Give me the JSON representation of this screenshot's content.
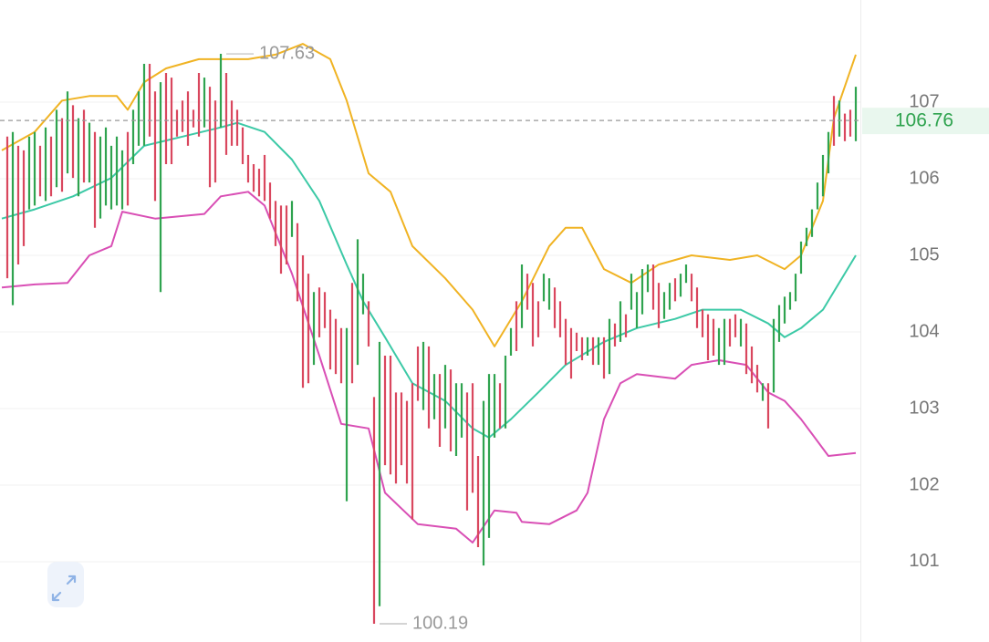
{
  "chart_data": {
    "type": "ohlc-bars",
    "ylim": [
      99.952,
      108.333
    ],
    "yticks": [
      101,
      102,
      103,
      104,
      105,
      106,
      107
    ],
    "grid": true,
    "up_color": "#2fa34f",
    "down_color": "#d9475e",
    "last_price": 106.76,
    "bars": {
      "high": [
        106.55,
        106.61,
        106.43,
        106.37,
        106.55,
        106.61,
        106.43,
        106.67,
        106.55,
        106.9,
        106.79,
        107.14,
        106.96,
        106.79,
        106.9,
        106.73,
        106.61,
        106.55,
        106.67,
        106.43,
        106.55,
        106.37,
        106.61,
        106.9,
        107.14,
        107.5,
        107.5,
        107.14,
        107.26,
        107.38,
        107.32,
        106.9,
        107.02,
        107.14,
        106.9,
        107.38,
        107.32,
        107.2,
        107.02,
        107.63,
        107.38,
        107.02,
        106.9,
        106.67,
        106.31,
        106.19,
        106.13,
        106.31,
        105.95,
        105.71,
        105.65,
        105.65,
        105.71,
        105.42,
        105.0,
        104.76,
        104.52,
        104.58,
        104.52,
        104.29,
        104.17,
        104.05,
        104.05,
        104.64,
        105.21,
        104.76,
        104.4,
        103.15,
        103.87,
        103.69,
        103.69,
        103.21,
        103.21,
        103.1,
        103.33,
        103.81,
        103.87,
        103.81,
        103.45,
        103.45,
        103.57,
        103.51,
        103.33,
        103.33,
        103.21,
        103.33,
        102.38,
        103.1,
        103.45,
        103.45,
        103.33,
        103.69,
        104.05,
        104.4,
        104.88,
        104.76,
        104.64,
        104.4,
        104.76,
        104.7,
        104.58,
        104.4,
        104.17,
        104.05,
        103.99,
        103.93,
        103.93,
        103.93,
        103.93,
        103.93,
        104.17,
        104.11,
        104.4,
        104.23,
        104.76,
        104.52,
        104.82,
        104.88,
        104.88,
        104.64,
        104.52,
        104.64,
        104.7,
        104.76,
        104.88,
        104.76,
        104.58,
        104.29,
        104.23,
        104.17,
        104.05,
        104.17,
        104.17,
        104.23,
        104.17,
        104.11,
        103.81,
        103.57,
        103.33,
        103.33,
        104.17,
        104.35,
        104.46,
        104.52,
        104.76,
        105.18,
        105.36,
        105.6,
        105.95,
        106.31,
        106.61,
        107.08,
        107.02,
        106.85,
        106.9,
        107.2
      ],
      "low": [
        104.7,
        104.35,
        104.88,
        105.12,
        105.6,
        105.65,
        105.77,
        105.71,
        105.77,
        105.89,
        105.83,
        106.07,
        106.01,
        105.77,
        105.95,
        105.95,
        105.36,
        105.48,
        105.65,
        105.6,
        105.65,
        105.6,
        105.65,
        106.19,
        106.43,
        106.43,
        106.55,
        105.71,
        104.52,
        106.19,
        106.19,
        106.55,
        106.61,
        106.43,
        106.67,
        106.55,
        106.67,
        105.89,
        105.95,
        106.67,
        106.31,
        106.43,
        106.43,
        106.19,
        105.95,
        105.83,
        105.77,
        105.71,
        105.48,
        105.12,
        104.76,
        104.88,
        105.24,
        104.4,
        103.27,
        103.33,
        103.57,
        103.93,
        104.05,
        103.51,
        103.45,
        103.33,
        101.79,
        103.33,
        103.57,
        104.23,
        103.81,
        100.19,
        100.42,
        102.26,
        102.14,
        102.02,
        102.26,
        102.02,
        101.55,
        103.1,
        102.98,
        102.74,
        102.86,
        102.5,
        102.74,
        102.44,
        102.38,
        102.62,
        101.67,
        101.9,
        101.19,
        100.95,
        101.31,
        102.62,
        102.74,
        102.74,
        103.69,
        103.75,
        104.05,
        104.29,
        103.81,
        103.93,
        104.4,
        104.29,
        104.05,
        103.93,
        103.57,
        103.39,
        103.75,
        103.63,
        103.69,
        103.57,
        103.57,
        103.39,
        103.45,
        103.81,
        103.87,
        103.93,
        104.29,
        104.05,
        104.23,
        104.52,
        104.29,
        104.05,
        104.17,
        104.29,
        104.4,
        104.46,
        104.64,
        104.4,
        104.05,
        103.93,
        103.63,
        103.69,
        103.57,
        103.57,
        103.81,
        103.93,
        103.81,
        103.45,
        103.33,
        103.21,
        103.1,
        102.74,
        103.21,
        103.87,
        104.11,
        104.29,
        104.4,
        104.76,
        105.12,
        105.24,
        105.6,
        105.77,
        106.07,
        106.43,
        106.55,
        106.49,
        106.55,
        106.49
      ],
      "rising": [
        false,
        true,
        false,
        false,
        true,
        true,
        false,
        true,
        false,
        true,
        false,
        true,
        false,
        true,
        false,
        true,
        false,
        true,
        true,
        true,
        true,
        true,
        false,
        true,
        true,
        true,
        false,
        false,
        true,
        false,
        false,
        false,
        false,
        false,
        false,
        false,
        true,
        false,
        false,
        true,
        false,
        false,
        false,
        false,
        false,
        false,
        false,
        false,
        false,
        false,
        false,
        false,
        true,
        false,
        false,
        false,
        true,
        false,
        false,
        false,
        false,
        false,
        true,
        false,
        true,
        true,
        false,
        false,
        true,
        false,
        false,
        false,
        false,
        false,
        false,
        false,
        true,
        false,
        true,
        false,
        true,
        false,
        true,
        true,
        false,
        false,
        false,
        true,
        true,
        true,
        false,
        true,
        true,
        false,
        true,
        false,
        false,
        false,
        true,
        true,
        false,
        false,
        false,
        false,
        false,
        false,
        true,
        false,
        true,
        false,
        true,
        false,
        true,
        false,
        true,
        true,
        true,
        true,
        false,
        false,
        true,
        true,
        false,
        true,
        true,
        false,
        false,
        false,
        false,
        false,
        true,
        true,
        false,
        false,
        true,
        false,
        false,
        false,
        true,
        false,
        true,
        true,
        true,
        true,
        true,
        true,
        true,
        true,
        true,
        true,
        true,
        false,
        true,
        false,
        false,
        true
      ]
    },
    "series": [
      {
        "color": "#f0b323",
        "x": [
          -1,
          5,
          10,
          15,
          20,
          22,
          25,
          29,
          35,
          39,
          44,
          49,
          54,
          59,
          62,
          66,
          70,
          74,
          80,
          85,
          89,
          94,
          99,
          102,
          105,
          109,
          114,
          119,
          125,
          132,
          137,
          142,
          145,
          149,
          151,
          155
        ],
        "values": [
          106.37,
          106.61,
          107.02,
          107.08,
          107.08,
          106.9,
          107.26,
          107.44,
          107.56,
          107.56,
          107.56,
          107.62,
          107.76,
          107.56,
          107.02,
          106.07,
          105.83,
          105.12,
          104.7,
          104.29,
          103.81,
          104.4,
          105.12,
          105.36,
          105.36,
          104.82,
          104.64,
          104.88,
          105.0,
          104.94,
          105.0,
          104.82,
          105.0,
          105.71,
          106.79,
          107.62
        ]
      },
      {
        "color": "#3cc9a6",
        "x": [
          -1,
          5,
          12,
          19,
          25,
          32,
          39,
          42,
          47,
          52,
          57,
          62,
          65,
          69,
          74,
          80,
          85,
          88,
          92,
          97,
          102,
          109,
          115,
          122,
          127,
          134,
          139,
          142,
          145,
          149,
          155
        ],
        "values": [
          105.48,
          105.6,
          105.77,
          106.01,
          106.43,
          106.55,
          106.67,
          106.73,
          106.61,
          106.25,
          105.71,
          104.88,
          104.4,
          103.93,
          103.33,
          103.1,
          102.74,
          102.62,
          102.86,
          103.21,
          103.57,
          103.87,
          104.05,
          104.17,
          104.29,
          104.29,
          104.11,
          103.93,
          104.05,
          104.29,
          105.0
        ]
      },
      {
        "color": "#d94fb5",
        "x": [
          -1,
          5,
          11,
          15,
          19,
          21,
          27,
          36,
          39,
          44,
          47,
          52,
          57,
          61,
          66,
          69,
          75,
          82,
          85,
          89,
          93,
          94,
          99,
          104,
          106,
          109,
          112,
          115,
          122,
          125,
          130,
          135,
          139,
          142,
          145,
          150,
          155
        ],
        "values": [
          104.58,
          104.62,
          104.64,
          105.0,
          105.12,
          105.57,
          105.48,
          105.54,
          105.77,
          105.83,
          105.65,
          104.76,
          103.69,
          102.8,
          102.74,
          101.9,
          101.49,
          101.43,
          101.25,
          101.67,
          101.64,
          101.52,
          101.49,
          101.67,
          101.9,
          102.86,
          103.33,
          103.45,
          103.39,
          103.57,
          103.63,
          103.57,
          103.21,
          103.1,
          102.86,
          102.38,
          102.42
        ]
      }
    ]
  }
}
